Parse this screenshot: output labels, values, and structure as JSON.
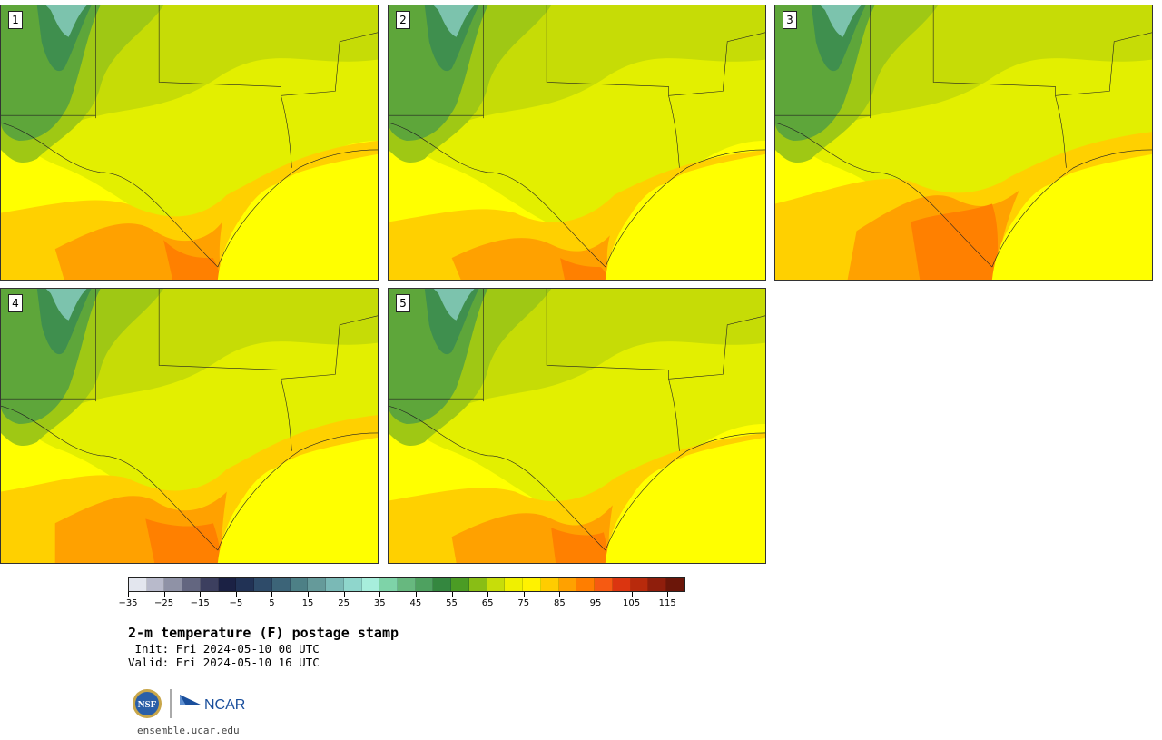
{
  "panels": [
    {
      "label": "1"
    },
    {
      "label": "2"
    },
    {
      "label": "3"
    },
    {
      "label": "4"
    },
    {
      "label": "5"
    }
  ],
  "colorbar": {
    "colors": [
      "#e3e6ee",
      "#b8bacb",
      "#8f92a6",
      "#636680",
      "#3c3f5f",
      "#1b2144",
      "#213255",
      "#2e4b69",
      "#3c6478",
      "#4d8086",
      "#659a9a",
      "#7ab9b6",
      "#8fd6cc",
      "#a7eedc",
      "#7ed3a8",
      "#67b87f",
      "#4ea160",
      "#34873f",
      "#4b9c24",
      "#89be15",
      "#c7dd0a",
      "#f0f000",
      "#fff200",
      "#ffcc00",
      "#ffa100",
      "#ff7e00",
      "#f65a12",
      "#db3510",
      "#b82a0c",
      "#8f1e0c",
      "#6b1609"
    ],
    "tick_labels": [
      "−35",
      "−25",
      "−15",
      "−5",
      "5",
      "15",
      "25",
      "35",
      "45",
      "55",
      "65",
      "75",
      "85",
      "95",
      "105",
      "115"
    ]
  },
  "title": "2-m temperature (F) postage stamp",
  "init_label": " Init: Fri 2024-05-10 00 UTC",
  "valid_label": "Valid: Fri 2024-05-10 16 UTC",
  "logos": {
    "left": "NSF",
    "right": "NCAR"
  },
  "website": "ensemble.ucar.edu"
}
